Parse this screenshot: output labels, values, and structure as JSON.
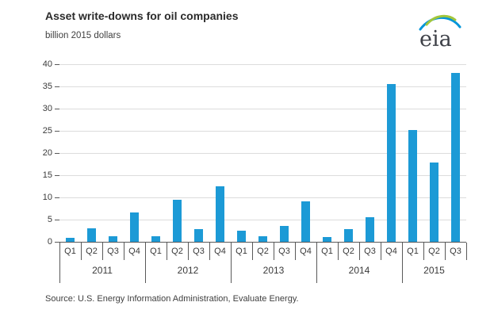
{
  "header": {
    "title": "Asset write-downs for oil companies",
    "subtitle": "billion 2015 dollars"
  },
  "logo": {
    "text": "eia"
  },
  "footer": {
    "source": "Source:  U.S. Energy Information Administration, Evaluate Energy."
  },
  "colors": {
    "bar": "#1c9ad6",
    "grid": "#dcdcdc",
    "axis": "#595959",
    "text": "#3a3a3a",
    "logo_green": "#a2c63c",
    "logo_blue": "#0095d9"
  },
  "chart_data": {
    "type": "bar",
    "title": "Asset write-downs for oil companies",
    "ylabel": "billion 2015 dollars",
    "xlabel": "",
    "ylim": [
      0,
      40
    ],
    "yticks": [
      0,
      5,
      10,
      15,
      20,
      25,
      30,
      35,
      40
    ],
    "grid": "horizontal",
    "legend": "none",
    "categories": [
      "2011 Q1",
      "2011 Q2",
      "2011 Q3",
      "2011 Q4",
      "2012 Q1",
      "2012 Q2",
      "2012 Q3",
      "2012 Q4",
      "2013 Q1",
      "2013 Q2",
      "2013 Q3",
      "2013 Q4",
      "2014 Q1",
      "2014 Q2",
      "2014 Q3",
      "2014 Q4",
      "2015 Q1",
      "2015 Q2",
      "2015 Q3"
    ],
    "values": [
      0.9,
      3.0,
      1.2,
      6.6,
      1.3,
      9.4,
      2.8,
      12.5,
      2.5,
      1.2,
      3.5,
      9.1,
      1.1,
      2.9,
      5.5,
      35.5,
      25.1,
      17.9,
      38.0
    ],
    "groups": [
      {
        "year": "2011",
        "quarters": [
          "Q1",
          "Q2",
          "Q3",
          "Q4"
        ],
        "values": [
          0.9,
          3.0,
          1.2,
          6.6
        ]
      },
      {
        "year": "2012",
        "quarters": [
          "Q1",
          "Q2",
          "Q3",
          "Q4"
        ],
        "values": [
          1.3,
          9.4,
          2.8,
          12.5
        ]
      },
      {
        "year": "2013",
        "quarters": [
          "Q1",
          "Q2",
          "Q3",
          "Q4"
        ],
        "values": [
          2.5,
          1.2,
          3.5,
          9.1
        ]
      },
      {
        "year": "2014",
        "quarters": [
          "Q1",
          "Q2",
          "Q3",
          "Q4"
        ],
        "values": [
          1.1,
          2.9,
          5.5,
          35.5
        ]
      },
      {
        "year": "2015",
        "quarters": [
          "Q1",
          "Q2",
          "Q3"
        ],
        "values": [
          25.1,
          17.9,
          38.0
        ]
      }
    ]
  }
}
